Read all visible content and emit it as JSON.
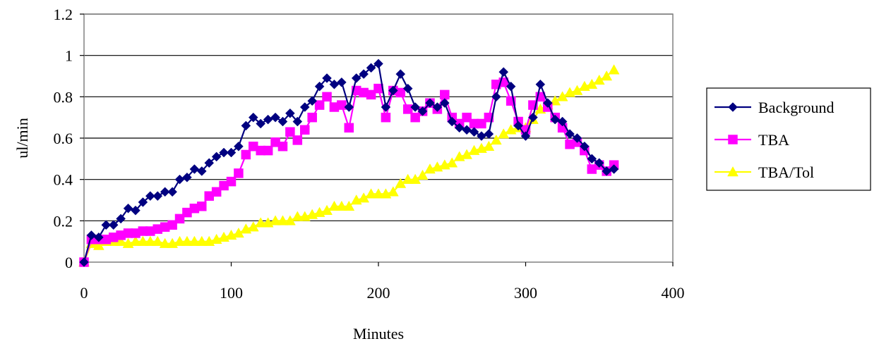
{
  "chart_data": {
    "type": "line",
    "title": "",
    "xlabel": "Minutes",
    "ylabel": "ul/min",
    "xlim": [
      0,
      400
    ],
    "ylim": [
      0,
      1.2
    ],
    "xticks": [
      "0",
      "100",
      "200",
      "300",
      "400"
    ],
    "yticks": [
      "0",
      "0.2",
      "0.4",
      "0.6",
      "0.8",
      "1",
      "1.2"
    ],
    "grid": "horizontal",
    "legend_position": "right",
    "series": [
      {
        "name": "Background",
        "color": "#000080",
        "marker": "diamond",
        "x": [
          0,
          5,
          10,
          15,
          20,
          25,
          30,
          35,
          40,
          45,
          50,
          55,
          60,
          65,
          70,
          75,
          80,
          85,
          90,
          95,
          100,
          105,
          110,
          115,
          120,
          125,
          130,
          135,
          140,
          145,
          150,
          155,
          160,
          165,
          170,
          175,
          180,
          185,
          190,
          195,
          200,
          205,
          210,
          215,
          220,
          225,
          230,
          235,
          240,
          245,
          250,
          255,
          260,
          265,
          270,
          275,
          280,
          285,
          290,
          295,
          300,
          305,
          310,
          315,
          320,
          325,
          330,
          335,
          340,
          345,
          350,
          355,
          360
        ],
        "y": [
          0,
          0.13,
          0.12,
          0.18,
          0.18,
          0.21,
          0.26,
          0.25,
          0.29,
          0.32,
          0.32,
          0.34,
          0.34,
          0.4,
          0.41,
          0.45,
          0.44,
          0.48,
          0.51,
          0.53,
          0.53,
          0.56,
          0.66,
          0.7,
          0.67,
          0.69,
          0.7,
          0.68,
          0.72,
          0.68,
          0.75,
          0.78,
          0.85,
          0.89,
          0.86,
          0.87,
          0.75,
          0.89,
          0.91,
          0.94,
          0.96,
          0.75,
          0.83,
          0.91,
          0.84,
          0.75,
          0.73,
          0.77,
          0.75,
          0.77,
          0.68,
          0.65,
          0.64,
          0.63,
          0.61,
          0.62,
          0.8,
          0.92,
          0.85,
          0.66,
          0.61,
          0.7,
          0.86,
          0.77,
          0.69,
          0.68,
          0.62,
          0.6,
          0.56,
          0.5,
          0.48,
          0.44,
          0.45
        ]
      },
      {
        "name": "TBA",
        "color": "#FF00FF",
        "marker": "square",
        "x": [
          0,
          5,
          10,
          15,
          20,
          25,
          30,
          35,
          40,
          45,
          50,
          55,
          60,
          65,
          70,
          75,
          80,
          85,
          90,
          95,
          100,
          105,
          110,
          115,
          120,
          125,
          130,
          135,
          140,
          145,
          150,
          155,
          160,
          165,
          170,
          175,
          180,
          185,
          190,
          195,
          200,
          205,
          210,
          215,
          220,
          225,
          230,
          235,
          240,
          245,
          250,
          255,
          260,
          265,
          270,
          275,
          280,
          285,
          290,
          295,
          300,
          305,
          310,
          315,
          320,
          325,
          330,
          335,
          340,
          345,
          350,
          355,
          360
        ],
        "y": [
          0,
          0.11,
          0.11,
          0.11,
          0.12,
          0.13,
          0.14,
          0.14,
          0.15,
          0.15,
          0.16,
          0.17,
          0.18,
          0.21,
          0.24,
          0.26,
          0.27,
          0.32,
          0.34,
          0.37,
          0.39,
          0.43,
          0.52,
          0.56,
          0.54,
          0.54,
          0.58,
          0.56,
          0.63,
          0.59,
          0.64,
          0.7,
          0.76,
          0.8,
          0.75,
          0.76,
          0.65,
          0.83,
          0.82,
          0.81,
          0.84,
          0.7,
          0.83,
          0.82,
          0.74,
          0.7,
          0.73,
          0.77,
          0.74,
          0.81,
          0.7,
          0.67,
          0.7,
          0.67,
          0.67,
          0.7,
          0.86,
          0.87,
          0.78,
          0.68,
          0.64,
          0.76,
          0.8,
          0.75,
          0.7,
          0.65,
          0.57,
          0.58,
          0.54,
          0.45,
          0.47,
          0.44,
          0.47
        ]
      },
      {
        "name": "TBA/Tol",
        "color": "#FFFF00",
        "marker": "triangle",
        "x": [
          0,
          5,
          10,
          15,
          20,
          25,
          30,
          35,
          40,
          45,
          50,
          55,
          60,
          65,
          70,
          75,
          80,
          85,
          90,
          95,
          100,
          105,
          110,
          115,
          120,
          125,
          130,
          135,
          140,
          145,
          150,
          155,
          160,
          165,
          170,
          175,
          180,
          185,
          190,
          195,
          200,
          205,
          210,
          215,
          220,
          225,
          230,
          235,
          240,
          245,
          250,
          255,
          260,
          265,
          270,
          275,
          280,
          285,
          290,
          295,
          300,
          305,
          310,
          315,
          320,
          325,
          330,
          335,
          340,
          345,
          350,
          355,
          360
        ],
        "y": [
          0,
          0.09,
          0.08,
          0.1,
          0.1,
          0.1,
          0.09,
          0.1,
          0.1,
          0.1,
          0.1,
          0.09,
          0.09,
          0.1,
          0.1,
          0.1,
          0.1,
          0.1,
          0.11,
          0.12,
          0.13,
          0.14,
          0.16,
          0.17,
          0.19,
          0.19,
          0.2,
          0.2,
          0.2,
          0.22,
          0.22,
          0.23,
          0.24,
          0.25,
          0.27,
          0.27,
          0.27,
          0.3,
          0.31,
          0.33,
          0.33,
          0.33,
          0.34,
          0.38,
          0.4,
          0.4,
          0.42,
          0.45,
          0.46,
          0.47,
          0.48,
          0.51,
          0.52,
          0.54,
          0.55,
          0.56,
          0.59,
          0.62,
          0.64,
          0.65,
          0.65,
          0.69,
          0.74,
          0.76,
          0.78,
          0.8,
          0.82,
          0.83,
          0.85,
          0.86,
          0.88,
          0.9,
          0.93
        ]
      }
    ]
  }
}
